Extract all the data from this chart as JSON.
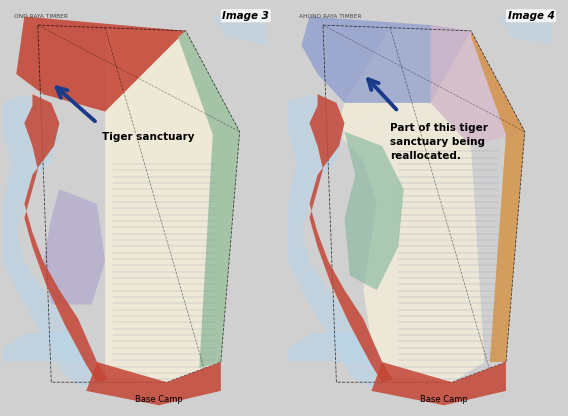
{
  "fig_width": 5.68,
  "fig_height": 4.16,
  "dpi": 100,
  "outer_bg": "#d0d0d0",
  "panel_bg": "#e8e4d8",
  "left_panel": {
    "label": "Image 3",
    "arrow_color": "#1a3a8a",
    "annotation_text": "Tiger sanctuary",
    "annotation_fontsize": 7.5,
    "timber_text": "OND RAYA TIMBER",
    "base_camp_text": "Base Camp",
    "colors": {
      "red": "#c44535",
      "cream": "#f0ead8",
      "green": "#8db898",
      "purple": "#a89ccc",
      "river": "#b8d4e8",
      "red_river": "#c44535",
      "map_bg": "#e8e2d0"
    }
  },
  "right_panel": {
    "label": "Image 4",
    "arrow_color": "#1a3a8a",
    "annotation_text": "Part of this tiger\nsanctuary being\nreallocated.",
    "annotation_fontsize": 7.5,
    "timber_text": "AHOND RAYA TIMBER",
    "base_camp_text": "Base Camp",
    "colors": {
      "blue": "#8899cc",
      "pink": "#d8b8c8",
      "cream": "#f0ead8",
      "orange": "#d4944a",
      "teal": "#88b8a0",
      "river": "#b8d4e8",
      "red_river": "#c44535",
      "map_bg": "#e8e2d0"
    }
  }
}
